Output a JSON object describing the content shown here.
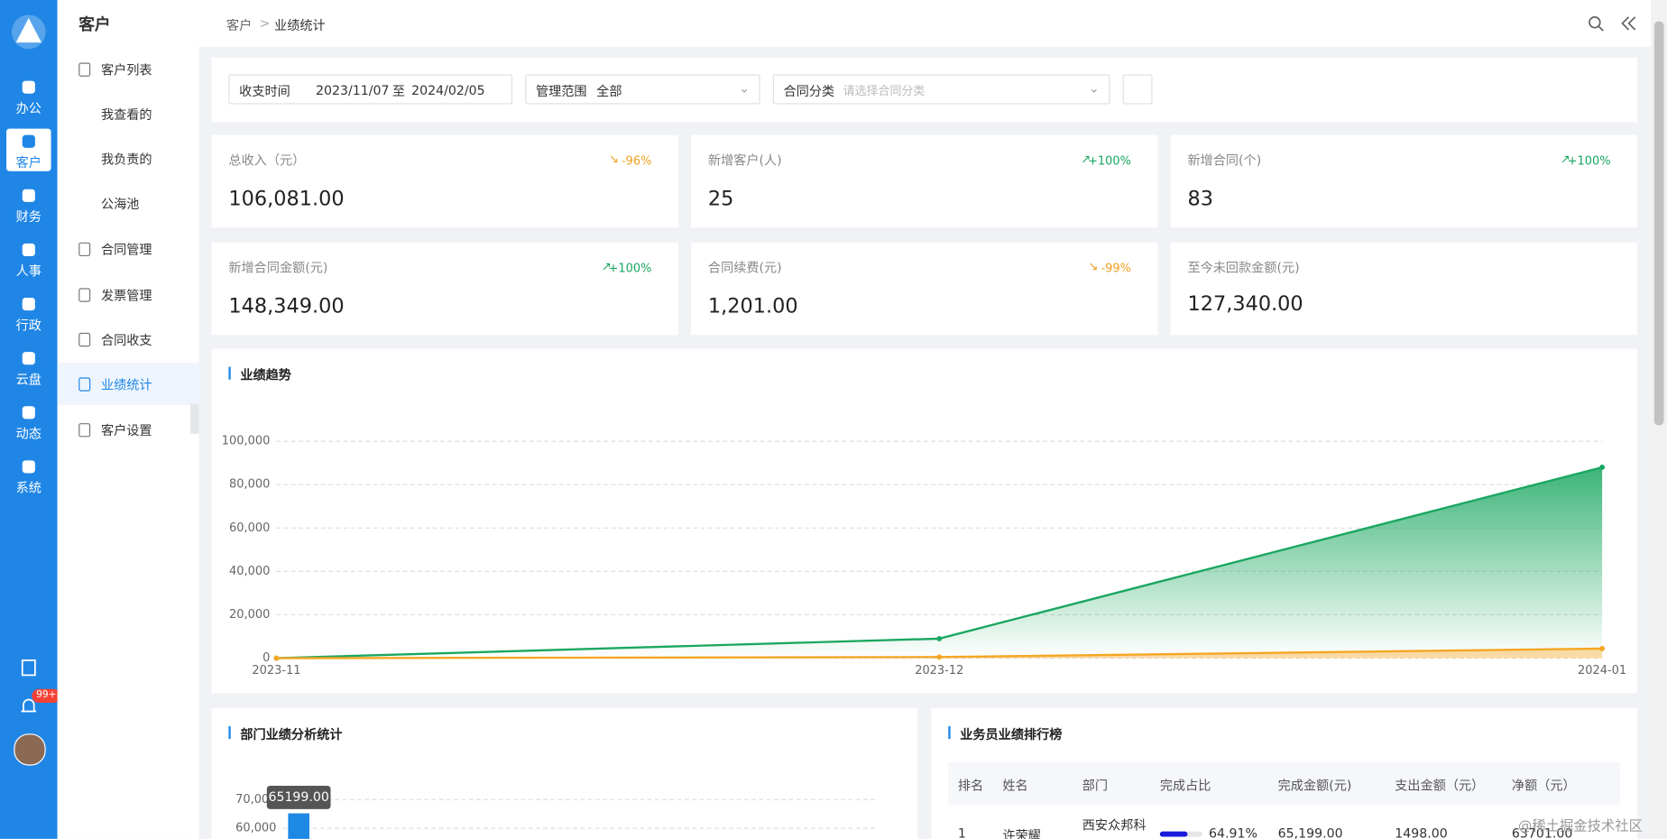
{
  "sidebar": {
    "items": [
      "办公",
      "客户",
      "财务",
      "人事",
      "行政",
      "云盘",
      "动态",
      "系统"
    ],
    "badge": "99+"
  },
  "menu": {
    "title": "客户",
    "items": [
      "客户列表",
      "我查看的",
      "我负责的",
      "公海池",
      "合同管理",
      "发票管理",
      "合同收支",
      "业绩统计",
      "客户设置"
    ]
  },
  "breadcrumb": [
    "客户",
    "业绩统计"
  ],
  "filters": {
    "time_label": "收支时间",
    "start": "2023/11/07",
    "to": "至",
    "end": "2024/02/05",
    "scope_label": "管理范围",
    "scope": "全部",
    "category_label": "合同分类",
    "category_placeholder": "请选择合同分类"
  },
  "stats": [
    {
      "label": "总收入（元）",
      "value": "106,081.00",
      "change": "-96%"
    },
    {
      "label": "新增客户(人)",
      "value": "25",
      "change": "+100%"
    },
    {
      "label": "新增合同(个)",
      "value": "83",
      "change": "+100%"
    },
    {
      "label": "新增合同金额(元)",
      "value": "148,349.00",
      "change": "+100%"
    },
    {
      "label": "合同续费(元)",
      "value": "1,201.00",
      "change": "-99%"
    },
    {
      "label": "至今未回款金额(元)",
      "value": "127,340.00"
    }
  ],
  "chart_data": [
    {
      "type": "line",
      "title": "业绩趋势",
      "categories": [
        "2023-11",
        "2023-12",
        "2024-01"
      ],
      "series": [
        {
          "color": "#1aa760",
          "values": [
            0,
            9000,
            88000
          ]
        },
        {
          "color": "#f5a623",
          "values": [
            0,
            500,
            4400
          ]
        }
      ],
      "ylim": [
        0,
        100000
      ],
      "yticks": [
        0,
        {
          "value": 20000,
          "label": "20,000"
        },
        {
          "value": 40000,
          "label": "40,000"
        },
        {
          "value": 60000,
          "label": "60,000"
        },
        {
          "value": 80000,
          "label": "80,000"
        },
        {
          "value": 100000,
          "label": "100,000"
        }
      ],
      "grid": true
    },
    {
      "type": "bar",
      "title": "部门业绩分析统计",
      "values": [
        65199
      ],
      "value_labels": [
        "65199.00"
      ],
      "color": "#1e88e5",
      "ylim": [
        60000,
        70000
      ],
      "yticks": [
        {
          "value": 60000,
          "label": "60,000"
        },
        {
          "value": 70000,
          "label": "70,000"
        }
      ],
      "grid": true
    }
  ],
  "ranking": {
    "title": "业务员业绩排行榜",
    "headers": [
      "排名",
      "姓名",
      "部门",
      "完成占比",
      "完成金额(元)",
      "支出金额（元）",
      "净额（元）"
    ],
    "rows": [
      [
        "1",
        "许荣耀",
        "西安众邦科",
        {
          "value": 64.91,
          "label": "64.91%"
        },
        "65,199.00",
        "1498.00",
        "63701.00"
      ]
    ]
  },
  "watermark": "@稀土掘金技术社区"
}
